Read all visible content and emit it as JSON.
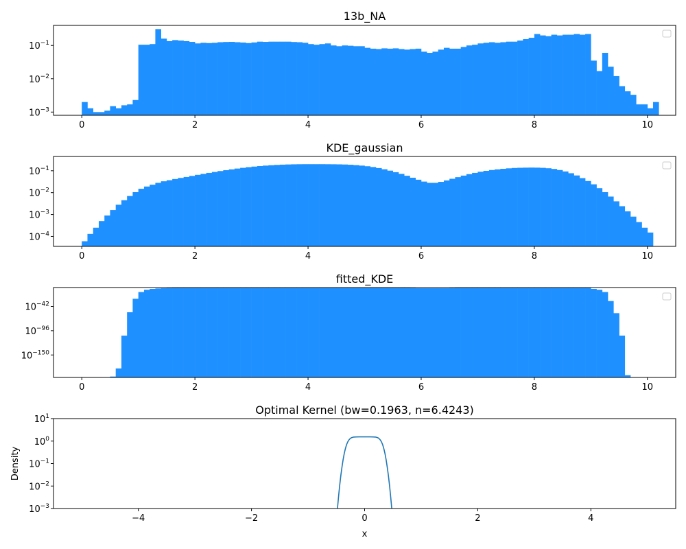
{
  "colors": {
    "histogram": "#1e90ff",
    "kernel_line": "#1f77b4",
    "axes": "#000000"
  },
  "chart_data": [
    {
      "type": "bar",
      "title": "13b_NA",
      "xlabel": "",
      "ylabel": "",
      "yscale": "log",
      "xlim": [
        -0.5,
        10.5
      ],
      "ylim": [
        0.0008,
        0.4
      ],
      "xticks": [
        0,
        2,
        4,
        6,
        8,
        10
      ],
      "yticks": [
        {
          "value": 0.1,
          "label": "10",
          "exp": "−1"
        },
        {
          "value": 0.01,
          "label": "10",
          "exp": "−2"
        },
        {
          "value": 0.001,
          "label": "10",
          "exp": "−3"
        }
      ],
      "legend": "top-right (empty)",
      "bin_width": 0.1,
      "bin_start": 0,
      "values": [
        0.002,
        0.0013,
        0.001,
        0.001,
        0.0011,
        0.0015,
        0.0013,
        0.0016,
        0.0017,
        0.0023,
        0.105,
        0.105,
        0.11,
        0.31,
        0.16,
        0.135,
        0.145,
        0.14,
        0.135,
        0.128,
        0.115,
        0.12,
        0.118,
        0.12,
        0.125,
        0.127,
        0.128,
        0.125,
        0.122,
        0.118,
        0.123,
        0.13,
        0.128,
        0.13,
        0.13,
        0.13,
        0.13,
        0.127,
        0.125,
        0.12,
        0.11,
        0.105,
        0.11,
        0.115,
        0.1,
        0.095,
        0.1,
        0.098,
        0.095,
        0.095,
        0.085,
        0.08,
        0.078,
        0.082,
        0.08,
        0.082,
        0.078,
        0.075,
        0.078,
        0.08,
        0.065,
        0.06,
        0.065,
        0.075,
        0.085,
        0.08,
        0.08,
        0.09,
        0.1,
        0.105,
        0.115,
        0.12,
        0.125,
        0.12,
        0.125,
        0.13,
        0.13,
        0.14,
        0.155,
        0.17,
        0.22,
        0.2,
        0.19,
        0.21,
        0.2,
        0.21,
        0.21,
        0.22,
        0.21,
        0.22,
        0.035,
        0.017,
        0.06,
        0.023,
        0.012,
        0.006,
        0.0042,
        0.0033,
        0.0017,
        0.0017,
        0.0013,
        0.002
      ]
    },
    {
      "type": "bar",
      "title": "KDE_gaussian",
      "xlabel": "",
      "ylabel": "",
      "yscale": "log",
      "xlim": [
        -0.5,
        10.5
      ],
      "ylim": [
        3.5e-05,
        0.45
      ],
      "xticks": [
        0,
        2,
        4,
        6,
        8,
        10
      ],
      "yticks": [
        {
          "value": 0.1,
          "label": "10",
          "exp": "−1"
        },
        {
          "value": 0.01,
          "label": "10",
          "exp": "−2"
        },
        {
          "value": 0.001,
          "label": "10",
          "exp": "−3"
        },
        {
          "value": 0.0001,
          "label": "10",
          "exp": "−4"
        }
      ],
      "legend": "top-right (empty)",
      "bin_width": 0.1,
      "bin_start": 0,
      "values": [
        6e-05,
        0.00013,
        0.00025,
        0.0005,
        0.0009,
        0.0016,
        0.0028,
        0.0045,
        0.007,
        0.0105,
        0.015,
        0.019,
        0.023,
        0.028,
        0.033,
        0.037,
        0.042,
        0.047,
        0.052,
        0.058,
        0.065,
        0.072,
        0.08,
        0.088,
        0.097,
        0.106,
        0.116,
        0.126,
        0.136,
        0.146,
        0.155,
        0.164,
        0.172,
        0.179,
        0.185,
        0.19,
        0.194,
        0.197,
        0.199,
        0.2,
        0.2,
        0.2,
        0.2,
        0.199,
        0.198,
        0.196,
        0.193,
        0.188,
        0.181,
        0.172,
        0.161,
        0.148,
        0.133,
        0.117,
        0.101,
        0.086,
        0.072,
        0.059,
        0.048,
        0.039,
        0.032,
        0.028,
        0.028,
        0.031,
        0.036,
        0.043,
        0.051,
        0.06,
        0.07,
        0.08,
        0.09,
        0.099,
        0.108,
        0.116,
        0.123,
        0.129,
        0.134,
        0.137,
        0.139,
        0.14,
        0.139,
        0.136,
        0.13,
        0.121,
        0.108,
        0.093,
        0.077,
        0.061,
        0.046,
        0.034,
        0.024,
        0.016,
        0.0105,
        0.0066,
        0.004,
        0.0024,
        0.0014,
        0.0008,
        0.00045,
        0.00025,
        0.00015
      ]
    },
    {
      "type": "bar",
      "title": "fitted_KDE",
      "xlabel": "",
      "ylabel": "",
      "yscale": "log",
      "log_units": "exponent (base 10) of density",
      "xlim": [
        -0.5,
        10.5
      ],
      "ylim_exponent": [
        -200,
        0
      ],
      "xticks": [
        0,
        2,
        4,
        6,
        8,
        10
      ],
      "yticks": [
        {
          "value": -42,
          "label": "10",
          "exp": "−42"
        },
        {
          "value": -96,
          "label": "10",
          "exp": "−96"
        },
        {
          "value": -150,
          "label": "10",
          "exp": "−150"
        }
      ],
      "legend": "top-right (empty)",
      "bin_width": 0.1,
      "bin_start": 0,
      "log10_values": [
        null,
        null,
        null,
        null,
        null,
        -198,
        -180,
        -107,
        -55,
        -25,
        -10,
        -5,
        -3,
        -2,
        -1.5,
        -1.2,
        -1,
        -1,
        -1,
        -1,
        -1,
        -1,
        -1,
        -1,
        -1,
        -1,
        -1,
        -1,
        -1,
        -1,
        -1,
        -1,
        -1,
        -1,
        -1,
        -1,
        -1,
        -1,
        -1,
        -1,
        -1,
        -1,
        -1,
        -1,
        -1,
        -1,
        -1,
        -1,
        -1,
        -1,
        -1,
        -1,
        -1,
        -1,
        -1,
        -1,
        -1,
        -1,
        -1.2,
        -1.5,
        -1.5,
        -1.5,
        -1.5,
        -1.5,
        -1.5,
        -1.2,
        -1,
        -1,
        -1,
        -1,
        -1,
        -1,
        -1,
        -1,
        -1,
        -1,
        -1,
        -1,
        -1,
        -1,
        -1,
        -1,
        -1,
        -1,
        -1,
        -1,
        -1,
        -1,
        -1,
        -1,
        -3,
        -5,
        -10,
        -30,
        -57,
        -107,
        -195,
        null,
        null,
        null,
        null
      ]
    },
    {
      "type": "line",
      "title": "Optimal Kernel (bw=0.1963, n=6.4243)",
      "xlabel": "x",
      "ylabel": "Density",
      "yscale": "log",
      "xlim": [
        -5.5,
        5.5
      ],
      "ylim": [
        0.001,
        10
      ],
      "xticks": [
        {
          "value": -4,
          "label": "−4"
        },
        {
          "value": -2,
          "label": "−2"
        },
        {
          "value": 0,
          "label": "0"
        },
        {
          "value": 2,
          "label": "2"
        },
        {
          "value": 4,
          "label": "4"
        }
      ],
      "yticks": [
        {
          "value": 10,
          "label": "10",
          "exp": "1"
        },
        {
          "value": 1,
          "label": "10",
          "exp": "0"
        },
        {
          "value": 0.1,
          "label": "10",
          "exp": "−1"
        },
        {
          "value": 0.01,
          "label": "10",
          "exp": "−2"
        },
        {
          "value": 0.001,
          "label": "10",
          "exp": "−3"
        }
      ],
      "series": [
        {
          "x": [
            -0.48,
            -0.46,
            -0.44,
            -0.42,
            -0.4,
            -0.38,
            -0.36,
            -0.34,
            -0.32,
            -0.3,
            -0.28,
            -0.26,
            -0.24,
            -0.22,
            -0.2,
            -0.15,
            -0.1,
            -0.05,
            0,
            0.05,
            0.1,
            0.15,
            0.2,
            0.22,
            0.24,
            0.26,
            0.28,
            0.3,
            0.32,
            0.34,
            0.36,
            0.38,
            0.4,
            0.42,
            0.44,
            0.46,
            0.48
          ],
          "values": [
            0.001,
            0.0035,
            0.011,
            0.03,
            0.07,
            0.15,
            0.28,
            0.46,
            0.68,
            0.9,
            1.1,
            1.26,
            1.38,
            1.45,
            1.5,
            1.53,
            1.54,
            1.54,
            1.54,
            1.54,
            1.54,
            1.53,
            1.5,
            1.45,
            1.38,
            1.26,
            1.1,
            0.9,
            0.68,
            0.46,
            0.28,
            0.15,
            0.07,
            0.03,
            0.011,
            0.0035,
            0.001
          ]
        }
      ]
    }
  ]
}
